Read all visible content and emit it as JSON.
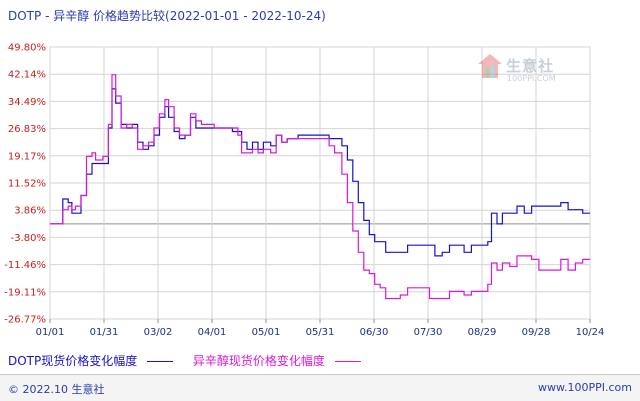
{
  "title": "DOTP - 异辛醇 价格趋势比较(2022-01-01 - 2022-10-24)",
  "watermark": {
    "name": "生意社",
    "url": "100PPI.COM",
    "icon": "house-logo-icon"
  },
  "footer": {
    "left": "© 2022.10 生意社",
    "right": "www.100PPI.com"
  },
  "colors": {
    "dotp": "#1a12c8",
    "isooctanol": "#d81ad8",
    "axis_text": "#c81e1e",
    "x_text": "#1f2f8a",
    "grid": "#c8c8c8"
  },
  "chart_data": {
    "type": "line",
    "title": "DOTP - 异辛醇 价格趋势比较(2022-01-01 - 2022-10-24)",
    "x_tick_labels": [
      "01/01",
      "01/31",
      "03/02",
      "04/01",
      "05/01",
      "05/31",
      "06/30",
      "07/30",
      "08/29",
      "09/28",
      "10/24"
    ],
    "y_tick_labels": [
      "49.80%",
      "42.14%",
      "34.49%",
      "26.83%",
      "19.17%",
      "11.52%",
      "3.86%",
      "-3.80%",
      "-11.46%",
      "-19.11%",
      "-26.77%"
    ],
    "ylim": [
      -26.77,
      49.8
    ],
    "xlim": [
      "2022-01-01",
      "2022-10-24"
    ],
    "grid": true,
    "legend_position": "bottom-left",
    "series": [
      {
        "name": "DOTP现货价格变化幅度",
        "color": "#1a12c8",
        "points": [
          [
            "2022-01-01",
            0
          ],
          [
            "2022-01-05",
            0
          ],
          [
            "2022-01-08",
            7
          ],
          [
            "2022-01-11",
            6
          ],
          [
            "2022-01-13",
            3
          ],
          [
            "2022-01-15",
            3
          ],
          [
            "2022-01-18",
            8
          ],
          [
            "2022-01-21",
            14
          ],
          [
            "2022-01-24",
            17
          ],
          [
            "2022-01-26",
            17
          ],
          [
            "2022-01-30",
            17
          ],
          [
            "2022-01-31",
            17
          ],
          [
            "2022-02-02",
            27
          ],
          [
            "2022-02-04",
            38
          ],
          [
            "2022-02-06",
            34
          ],
          [
            "2022-02-09",
            28
          ],
          [
            "2022-02-12",
            27
          ],
          [
            "2022-02-15",
            28
          ],
          [
            "2022-02-18",
            23
          ],
          [
            "2022-02-21",
            21
          ],
          [
            "2022-02-24",
            22
          ],
          [
            "2022-02-27",
            25
          ],
          [
            "2022-03-02",
            30
          ],
          [
            "2022-03-05",
            33
          ],
          [
            "2022-03-07",
            30
          ],
          [
            "2022-03-10",
            26
          ],
          [
            "2022-03-13",
            24
          ],
          [
            "2022-03-16",
            25
          ],
          [
            "2022-03-19",
            30
          ],
          [
            "2022-03-22",
            27
          ],
          [
            "2022-03-25",
            27
          ],
          [
            "2022-04-01",
            27
          ],
          [
            "2022-04-06",
            27
          ],
          [
            "2022-04-11",
            26
          ],
          [
            "2022-04-14",
            26
          ],
          [
            "2022-04-16",
            23
          ],
          [
            "2022-04-19",
            21
          ],
          [
            "2022-04-22",
            23
          ],
          [
            "2022-04-25",
            21
          ],
          [
            "2022-04-28",
            23
          ],
          [
            "2022-05-02",
            22
          ],
          [
            "2022-05-05",
            25
          ],
          [
            "2022-05-08",
            23
          ],
          [
            "2022-05-11",
            24
          ],
          [
            "2022-05-14",
            24
          ],
          [
            "2022-05-17",
            25
          ],
          [
            "2022-05-20",
            25
          ],
          [
            "2022-05-25",
            25
          ],
          [
            "2022-05-31",
            25
          ],
          [
            "2022-06-03",
            24
          ],
          [
            "2022-06-06",
            24
          ],
          [
            "2022-06-10",
            22
          ],
          [
            "2022-06-13",
            18
          ],
          [
            "2022-06-16",
            12
          ],
          [
            "2022-06-19",
            6
          ],
          [
            "2022-06-22",
            1
          ],
          [
            "2022-06-25",
            -3
          ],
          [
            "2022-06-28",
            -5
          ],
          [
            "2022-07-01",
            -5
          ],
          [
            "2022-07-04",
            -8
          ],
          [
            "2022-07-08",
            -8
          ],
          [
            "2022-07-12",
            -8
          ],
          [
            "2022-07-16",
            -6
          ],
          [
            "2022-07-20",
            -6
          ],
          [
            "2022-07-24",
            -6
          ],
          [
            "2022-07-28",
            -6
          ],
          [
            "2022-07-31",
            -9
          ],
          [
            "2022-08-04",
            -8
          ],
          [
            "2022-08-08",
            -6
          ],
          [
            "2022-08-12",
            -6
          ],
          [
            "2022-08-16",
            -8
          ],
          [
            "2022-08-20",
            -6
          ],
          [
            "2022-08-25",
            -6
          ],
          [
            "2022-08-29",
            -5
          ],
          [
            "2022-08-31",
            3
          ],
          [
            "2022-09-03",
            0
          ],
          [
            "2022-09-06",
            3
          ],
          [
            "2022-09-10",
            3
          ],
          [
            "2022-09-14",
            5
          ],
          [
            "2022-09-18",
            3
          ],
          [
            "2022-09-22",
            5
          ],
          [
            "2022-09-26",
            5
          ],
          [
            "2022-09-30",
            5
          ],
          [
            "2022-10-04",
            5
          ],
          [
            "2022-10-08",
            6
          ],
          [
            "2022-10-12",
            4
          ],
          [
            "2022-10-16",
            4
          ],
          [
            "2022-10-20",
            3
          ],
          [
            "2022-10-24",
            3
          ]
        ]
      },
      {
        "name": "异辛醇现货价格变化幅度",
        "color": "#d81ad8",
        "points": [
          [
            "2022-01-01",
            0
          ],
          [
            "2022-01-05",
            0
          ],
          [
            "2022-01-08",
            4
          ],
          [
            "2022-01-11",
            5
          ],
          [
            "2022-01-13",
            4
          ],
          [
            "2022-01-15",
            5
          ],
          [
            "2022-01-18",
            8
          ],
          [
            "2022-01-21",
            19
          ],
          [
            "2022-01-24",
            20
          ],
          [
            "2022-01-26",
            18
          ],
          [
            "2022-01-30",
            19
          ],
          [
            "2022-01-31",
            19
          ],
          [
            "2022-02-02",
            28
          ],
          [
            "2022-02-04",
            42
          ],
          [
            "2022-02-06",
            36
          ],
          [
            "2022-02-09",
            27
          ],
          [
            "2022-02-12",
            28
          ],
          [
            "2022-02-15",
            27
          ],
          [
            "2022-02-18",
            21
          ],
          [
            "2022-02-21",
            22
          ],
          [
            "2022-02-24",
            23
          ],
          [
            "2022-02-27",
            27
          ],
          [
            "2022-03-02",
            31
          ],
          [
            "2022-03-05",
            35
          ],
          [
            "2022-03-07",
            33
          ],
          [
            "2022-03-10",
            27
          ],
          [
            "2022-03-13",
            25
          ],
          [
            "2022-03-16",
            25
          ],
          [
            "2022-03-19",
            31
          ],
          [
            "2022-03-22",
            29
          ],
          [
            "2022-03-25",
            28
          ],
          [
            "2022-04-01",
            27
          ],
          [
            "2022-04-06",
            27
          ],
          [
            "2022-04-11",
            27
          ],
          [
            "2022-04-14",
            25
          ],
          [
            "2022-04-16",
            20
          ],
          [
            "2022-04-19",
            20
          ],
          [
            "2022-04-22",
            21
          ],
          [
            "2022-04-25",
            20
          ],
          [
            "2022-04-28",
            21
          ],
          [
            "2022-05-02",
            20
          ],
          [
            "2022-05-05",
            25
          ],
          [
            "2022-05-08",
            23
          ],
          [
            "2022-05-11",
            24
          ],
          [
            "2022-05-14",
            24
          ],
          [
            "2022-05-17",
            24
          ],
          [
            "2022-05-20",
            24
          ],
          [
            "2022-05-25",
            24
          ],
          [
            "2022-05-31",
            24
          ],
          [
            "2022-06-03",
            22
          ],
          [
            "2022-06-06",
            20
          ],
          [
            "2022-06-10",
            14
          ],
          [
            "2022-06-13",
            6
          ],
          [
            "2022-06-16",
            -2
          ],
          [
            "2022-06-19",
            -8
          ],
          [
            "2022-06-22",
            -13
          ],
          [
            "2022-06-25",
            -14
          ],
          [
            "2022-06-28",
            -17
          ],
          [
            "2022-07-01",
            -18
          ],
          [
            "2022-07-04",
            -21
          ],
          [
            "2022-07-08",
            -21
          ],
          [
            "2022-07-12",
            -20
          ],
          [
            "2022-07-16",
            -18
          ],
          [
            "2022-07-20",
            -18
          ],
          [
            "2022-07-24",
            -18
          ],
          [
            "2022-07-28",
            -21
          ],
          [
            "2022-07-31",
            -21
          ],
          [
            "2022-08-04",
            -21
          ],
          [
            "2022-08-08",
            -19
          ],
          [
            "2022-08-12",
            -19
          ],
          [
            "2022-08-16",
            -20
          ],
          [
            "2022-08-20",
            -19
          ],
          [
            "2022-08-25",
            -19
          ],
          [
            "2022-08-29",
            -17
          ],
          [
            "2022-08-31",
            -11
          ],
          [
            "2022-09-03",
            -13
          ],
          [
            "2022-09-06",
            -11
          ],
          [
            "2022-09-10",
            -12
          ],
          [
            "2022-09-14",
            -9
          ],
          [
            "2022-09-18",
            -9
          ],
          [
            "2022-09-22",
            -10
          ],
          [
            "2022-09-26",
            -13
          ],
          [
            "2022-09-30",
            -13
          ],
          [
            "2022-10-04",
            -13
          ],
          [
            "2022-10-08",
            -10
          ],
          [
            "2022-10-12",
            -13
          ],
          [
            "2022-10-16",
            -11
          ],
          [
            "2022-10-20",
            -10
          ],
          [
            "2022-10-24",
            -10
          ]
        ]
      }
    ]
  }
}
